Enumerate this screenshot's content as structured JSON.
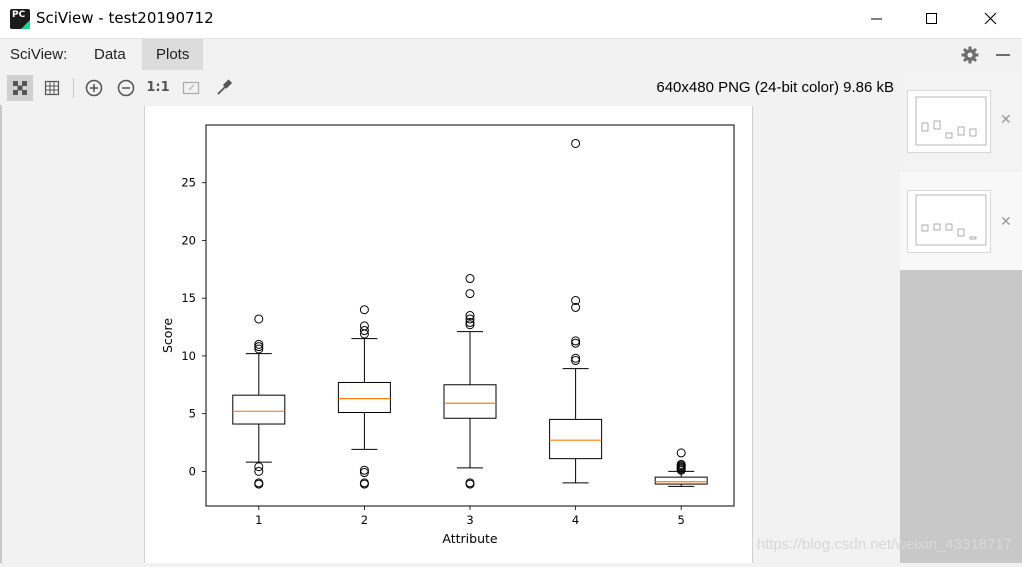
{
  "window": {
    "title": "SciView - test20190712",
    "app_icon_label": "PC"
  },
  "menu": {
    "items": [
      {
        "label": "SciView:"
      },
      {
        "label": "Data"
      },
      {
        "label": "Plots"
      }
    ]
  },
  "toolbar": {
    "actual_size_label": "1:1",
    "image_info": "640x480 PNG (24-bit color) 9.86 kB"
  },
  "watermark": "https://blog.csdn.net/weixin_43318717",
  "colors": {
    "median": "#ff7f0e",
    "box": "#000000",
    "thumb_panel": "#c8c8c8"
  },
  "chart_data": {
    "type": "boxplot",
    "title": "",
    "xlabel": "Attribute",
    "ylabel": "Score",
    "categories": [
      "1",
      "2",
      "3",
      "4",
      "5"
    ],
    "ylim": [
      -3,
      30
    ],
    "xlim": [
      0.5,
      5.5
    ],
    "yticks": [
      0,
      5,
      10,
      15,
      20,
      25
    ],
    "grid": false,
    "boxes": [
      {
        "category": "1",
        "whisker_low": 0.8,
        "q1": 4.1,
        "median": 5.2,
        "q3": 6.6,
        "whisker_high": 10.2,
        "fliers": [
          13.2,
          11.0,
          10.8,
          10.6,
          0.4,
          0.0,
          -1.0,
          -1.1
        ]
      },
      {
        "category": "2",
        "whisker_low": 1.9,
        "q1": 5.1,
        "median": 6.3,
        "q3": 7.7,
        "whisker_high": 11.5,
        "fliers": [
          14.0,
          12.6,
          12.2,
          11.9,
          0.1,
          -0.1,
          -1.0,
          -1.1
        ]
      },
      {
        "category": "3",
        "whisker_low": 0.3,
        "q1": 4.6,
        "median": 5.9,
        "q3": 7.5,
        "whisker_high": 12.1,
        "fliers": [
          16.7,
          15.4,
          13.5,
          13.2,
          12.9,
          12.7,
          -1.0,
          -1.1
        ]
      },
      {
        "category": "4",
        "whisker_low": -1.0,
        "q1": 1.1,
        "median": 2.7,
        "q3": 4.5,
        "whisker_high": 8.9,
        "fliers": [
          28.4,
          14.8,
          14.2,
          11.3,
          11.1,
          9.8,
          9.6
        ]
      },
      {
        "category": "5",
        "whisker_low": -1.3,
        "q1": -1.1,
        "median": -0.9,
        "q3": -0.5,
        "whisker_high": 0.0,
        "fliers": [
          1.6,
          0.6,
          0.5,
          0.4,
          0.3,
          0.2,
          0.1
        ]
      }
    ]
  }
}
